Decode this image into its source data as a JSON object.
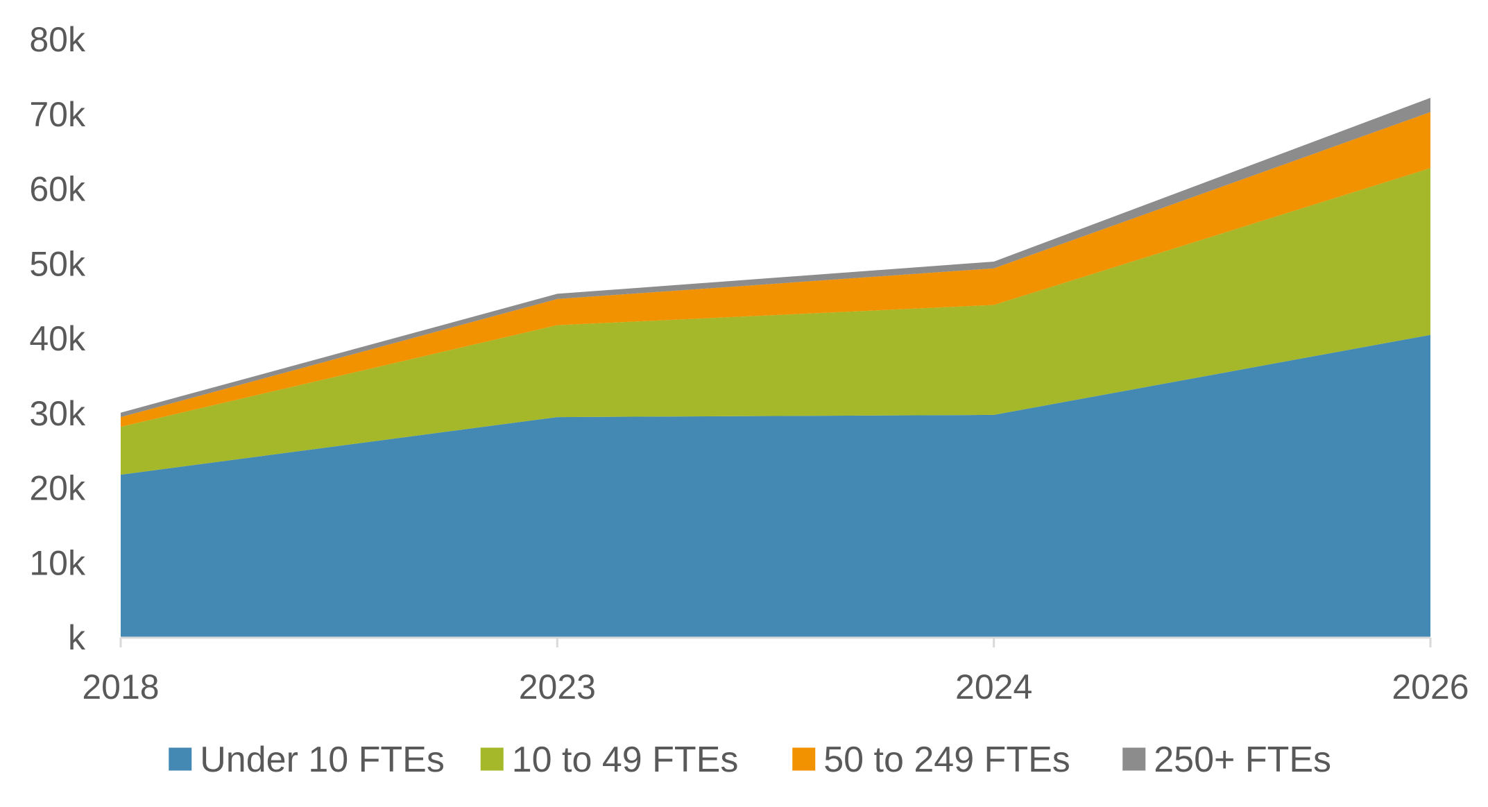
{
  "chart_data": {
    "type": "area",
    "stacked": true,
    "title": "",
    "xlabel": "",
    "ylabel": "",
    "categories": [
      "2018",
      "2023",
      "2024",
      "2026"
    ],
    "series": [
      {
        "name": "Under 10 FTEs",
        "color": "#4389B3",
        "values": [
          21800,
          29500,
          29800,
          40500
        ]
      },
      {
        "name": "10 to 49 FTEs",
        "color": "#A4B829",
        "values": [
          6400,
          12300,
          14700,
          22300
        ]
      },
      {
        "name": "50 to 249 FTEs",
        "color": "#F29200",
        "values": [
          1300,
          3500,
          4900,
          7500
        ]
      },
      {
        "name": "250+ FTEs",
        "color": "#8C8C8C",
        "values": [
          600,
          700,
          900,
          1900
        ]
      }
    ],
    "ylim": [
      0,
      80000
    ],
    "yticks": [
      {
        "value": 0,
        "label": "k"
      },
      {
        "value": 10000,
        "label": "10k"
      },
      {
        "value": 20000,
        "label": "20k"
      },
      {
        "value": 30000,
        "label": "30k"
      },
      {
        "value": 40000,
        "label": "40k"
      },
      {
        "value": 50000,
        "label": "50k"
      },
      {
        "value": 60000,
        "label": "60k"
      },
      {
        "value": 70000,
        "label": "70k"
      },
      {
        "value": 80000,
        "label": "80k"
      }
    ],
    "grid": false,
    "legend_position": "bottom",
    "axis_color": "#D9D9D9"
  }
}
